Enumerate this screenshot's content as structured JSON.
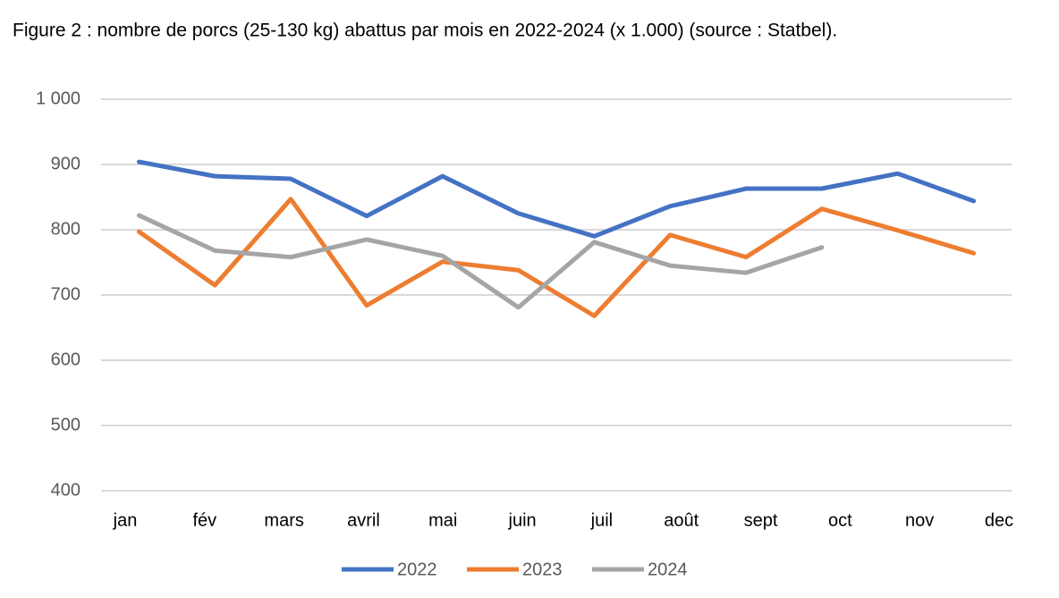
{
  "chart_data": {
    "type": "line",
    "title": "Figure 2 : nombre de porcs (25-130 kg) abattus par mois en 2022-2024 (x 1.000) (source : Statbel).",
    "categories": [
      "jan",
      "fév",
      "mars",
      "avril",
      "mai",
      "juin",
      "juil",
      "août",
      "sept",
      "oct",
      "nov",
      "dec"
    ],
    "series": [
      {
        "name": "2022",
        "color": "#4472c4",
        "values": [
          904,
          882,
          878,
          821,
          882,
          825,
          790,
          836,
          863,
          863,
          886,
          844
        ]
      },
      {
        "name": "2023",
        "color": "#ed7d31",
        "values": [
          797,
          715,
          847,
          684,
          751,
          738,
          668,
          792,
          758,
          832,
          799,
          764
        ]
      },
      {
        "name": "2024",
        "color": "#a5a5a5",
        "values": [
          822,
          768,
          758,
          785,
          760,
          681,
          781,
          745,
          734,
          773,
          null,
          null
        ]
      }
    ],
    "ylim": [
      400,
      1000
    ],
    "yticks": [
      400,
      500,
      600,
      700,
      800,
      900,
      {
        "value": 1000,
        "label": "1 000"
      }
    ],
    "grid": true,
    "legend": "bottom"
  }
}
